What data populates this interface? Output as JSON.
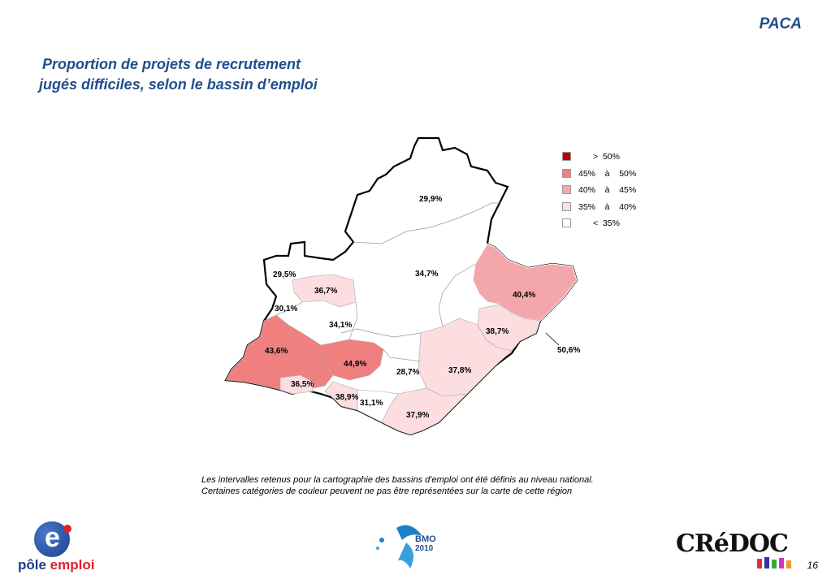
{
  "header": {
    "region": "PACA"
  },
  "title": {
    "line1": "Proportion de projets de recrutement",
    "line2": "jugés difficiles, selon le bassin d’emploi"
  },
  "legend": {
    "items": [
      {
        "label": ">  50%",
        "color": "#c00000"
      },
      {
        "label": "45%    à    50%",
        "color": "#f08080"
      },
      {
        "label": "40%    à    45%",
        "color": "#f4a7ab"
      },
      {
        "label": "35%    à    40%",
        "color": "#fcdde0"
      },
      {
        "label": "<  35%",
        "color": "#ffffff"
      }
    ]
  },
  "map_labels": {
    "b1": "29,9%",
    "b2": "34,7%",
    "b3": "40,4%",
    "b4": "29,5%",
    "b5": "36,7%",
    "b6": "30,1%",
    "b7": "34,1%",
    "b8": "38,7%",
    "b9": "50,6%",
    "b10": "43,6%",
    "b11": "44,9%",
    "b12": "28,7%",
    "b13": "37,8%",
    "b14": "36,5%",
    "b15": "38,9%",
    "b16": "31,1%",
    "b17": "37,9%"
  },
  "note": {
    "line1": "Les intervalles retenus pour la cartographie des bassins d'emploi ont été définis au niveau national.",
    "line2": "Certaines catégories de couleur peuvent ne pas être représentées sur la carte de cette région"
  },
  "logos": {
    "pole_emploi_a": "pôle ",
    "pole_emploi_b": "emploi",
    "pole_emploi_e": "e",
    "bmo": "BMO",
    "bmo_year": "2010",
    "credoc": "CRéDOC"
  },
  "page_number": "16"
}
